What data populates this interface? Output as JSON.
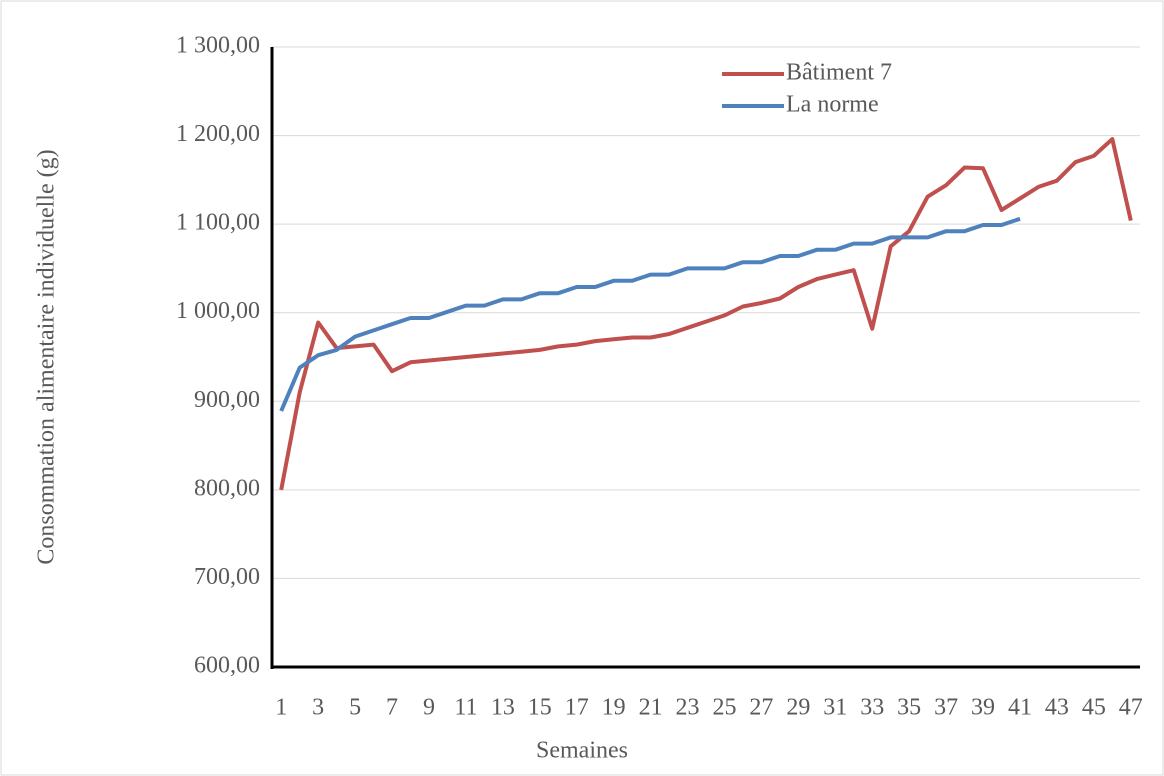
{
  "chart_data": {
    "type": "line",
    "x_label": "Semaines",
    "y_label": "Consommation alimentaire individuelle (g)",
    "categories": [
      "1",
      null,
      "3",
      null,
      "5",
      null,
      "7",
      null,
      "9",
      null,
      "11",
      null,
      "13",
      null,
      "15",
      null,
      "17",
      null,
      "19",
      null,
      "21",
      null,
      "23",
      null,
      "25",
      null,
      "27",
      null,
      "29",
      null,
      "31",
      null,
      "33",
      null,
      "35",
      null,
      "37",
      null,
      "39",
      null,
      "41",
      null,
      "43",
      null,
      "45",
      null,
      "47"
    ],
    "series": [
      {
        "name": "Bâtiment 7",
        "color": "#c0504d",
        "values": [
          800,
          910,
          989,
          960,
          962,
          964,
          934,
          944,
          946,
          948,
          950,
          952,
          954,
          956,
          958,
          962,
          964,
          968,
          970,
          972,
          972,
          976,
          983,
          990,
          997,
          1007,
          1011,
          1016,
          1029,
          1038,
          1043,
          1048,
          982,
          1075,
          1092,
          1131,
          1144,
          1164,
          1163,
          1116,
          1129,
          1142,
          1149,
          1170,
          1177,
          1196,
          1104
        ]
      },
      {
        "name": "La norme",
        "color": "#4f81bd",
        "values": [
          889,
          938,
          952,
          958,
          973,
          980,
          987,
          994,
          994,
          1001,
          1008,
          1008,
          1015,
          1015,
          1022,
          1022,
          1029,
          1029,
          1036,
          1036,
          1043,
          1043,
          1050,
          1050,
          1050,
          1057,
          1057,
          1064,
          1064,
          1071,
          1071,
          1078,
          1078,
          1085,
          1085,
          1085,
          1092,
          1092,
          1099,
          1099,
          1106,
          null,
          null,
          null,
          null,
          null,
          null
        ]
      }
    ],
    "ylim": [
      600,
      1300
    ],
    "yticks": [
      {
        "value": 600,
        "label": "600,00"
      },
      {
        "value": 700,
        "label": "700,00"
      },
      {
        "value": 800,
        "label": "800,00"
      },
      {
        "value": 900,
        "label": "900,00"
      },
      {
        "value": 1000,
        "label": "1 000,00"
      },
      {
        "value": 1100,
        "label": "1 100,00"
      },
      {
        "value": 1200,
        "label": "1 200,00"
      },
      {
        "value": 1300,
        "label": "1 300,00"
      }
    ],
    "grid": true,
    "legend": "top-right"
  }
}
